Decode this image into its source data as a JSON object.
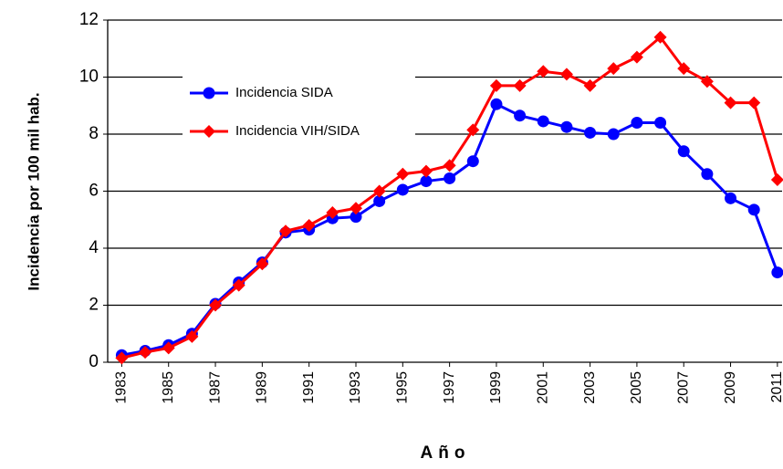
{
  "chart_data": {
    "type": "line",
    "x": [
      1983,
      1984,
      1985,
      1986,
      1987,
      1988,
      1989,
      1990,
      1991,
      1992,
      1993,
      1994,
      1995,
      1996,
      1997,
      1998,
      1999,
      2000,
      2001,
      2002,
      2003,
      2004,
      2005,
      2006,
      2007,
      2008,
      2009,
      2010,
      2011
    ],
    "series": [
      {
        "name": "Incidencia SIDA",
        "color": "#0000ff",
        "marker": "circle",
        "values": [
          0.25,
          0.4,
          0.6,
          1.0,
          2.05,
          2.8,
          3.5,
          4.55,
          4.65,
          5.05,
          5.1,
          5.65,
          6.05,
          6.35,
          6.45,
          7.05,
          9.05,
          8.65,
          8.45,
          8.25,
          8.05,
          8.0,
          8.4,
          8.4,
          7.4,
          6.6,
          5.75,
          5.35,
          3.15
        ]
      },
      {
        "name": "Incidencia VIH/SIDA",
        "color": "#ff0000",
        "marker": "diamond",
        "values": [
          0.15,
          0.35,
          0.5,
          0.9,
          2.0,
          2.7,
          3.45,
          4.6,
          4.8,
          5.25,
          5.4,
          6.0,
          6.6,
          6.7,
          6.9,
          8.15,
          9.7,
          9.7,
          10.2,
          10.1,
          9.7,
          10.3,
          10.7,
          11.4,
          10.3,
          9.85,
          9.1,
          9.1,
          6.4
        ]
      }
    ],
    "xlabel": "Año",
    "ylabel": "Incidencia por 100 mil hab.",
    "xlim": [
      1982.4,
      2011.2
    ],
    "xticks": [
      1983,
      1985,
      1987,
      1989,
      1991,
      1993,
      1995,
      1997,
      1999,
      2001,
      2003,
      2005,
      2007,
      2009,
      2011
    ],
    "ylim": [
      0,
      12
    ],
    "yticks": [
      0,
      2,
      4,
      6,
      8,
      10,
      12
    ],
    "grid": true,
    "legend": "upper left"
  }
}
